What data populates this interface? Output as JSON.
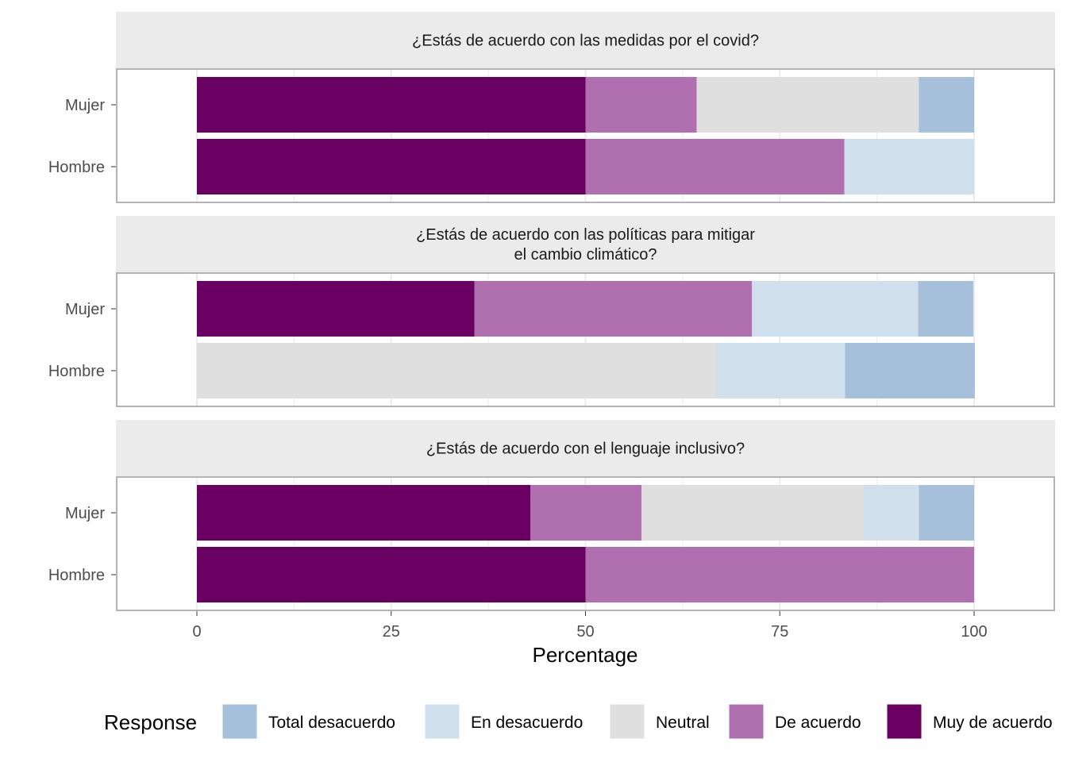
{
  "chart_data": {
    "type": "bar",
    "orientation": "horizontal",
    "stacked": true,
    "xlabel": "Percentage",
    "x_ticks": [
      "0",
      "25",
      "50",
      "75",
      "100"
    ],
    "xlim": [
      -10.3,
      110.3
    ],
    "legend_title": "Response",
    "legend_position": "bottom",
    "response_levels": [
      {
        "name": "Total desacuerdo",
        "color": "#a6c0dc"
      },
      {
        "name": "En desacuerdo",
        "color": "#d0dfec"
      },
      {
        "name": "Neutral",
        "color": "#dfdfdf"
      },
      {
        "name": "De acuerdo",
        "color": "#b070b0"
      },
      {
        "name": "Muy de acuerdo",
        "color": "#6a0062"
      }
    ],
    "panels": [
      {
        "title": "¿Estás de acuerdo con las medidas por el covid?",
        "rows": [
          {
            "label": "Mujer",
            "values": {
              "Muy de acuerdo": 50,
              "De acuerdo": 14.3,
              "Neutral": 28.6,
              "En desacuerdo": 0,
              "Total desacuerdo": 7.1
            }
          },
          {
            "label": "Hombre",
            "values": {
              "Muy de acuerdo": 50,
              "De acuerdo": 33.3,
              "Neutral": 0,
              "En desacuerdo": 16.7,
              "Total desacuerdo": 0
            }
          }
        ]
      },
      {
        "title": "¿Estás de acuerdo con las políticas para mitigar\nel cambio climático?",
        "rows": [
          {
            "label": "Mujer",
            "values": {
              "Muy de acuerdo": 35.7,
              "De acuerdo": 35.7,
              "Neutral": 0,
              "En desacuerdo": 21.4,
              "Total desacuerdo": 7.1
            }
          },
          {
            "label": "Hombre",
            "values": {
              "Muy de acuerdo": 0,
              "De acuerdo": 0,
              "Neutral": 66.7,
              "En desacuerdo": 16.7,
              "Total desacuerdo": 16.7
            }
          }
        ]
      },
      {
        "title": "¿Estás de acuerdo con el lenguaje inclusivo?",
        "rows": [
          {
            "label": "Mujer",
            "values": {
              "Muy de acuerdo": 42.9,
              "De acuerdo": 14.3,
              "Neutral": 28.6,
              "En desacuerdo": 7.1,
              "Total desacuerdo": 7.1
            }
          },
          {
            "label": "Hombre",
            "values": {
              "Muy de acuerdo": 50,
              "De acuerdo": 50,
              "Neutral": 0,
              "En desacuerdo": 0,
              "Total desacuerdo": 0
            }
          }
        ]
      }
    ]
  }
}
